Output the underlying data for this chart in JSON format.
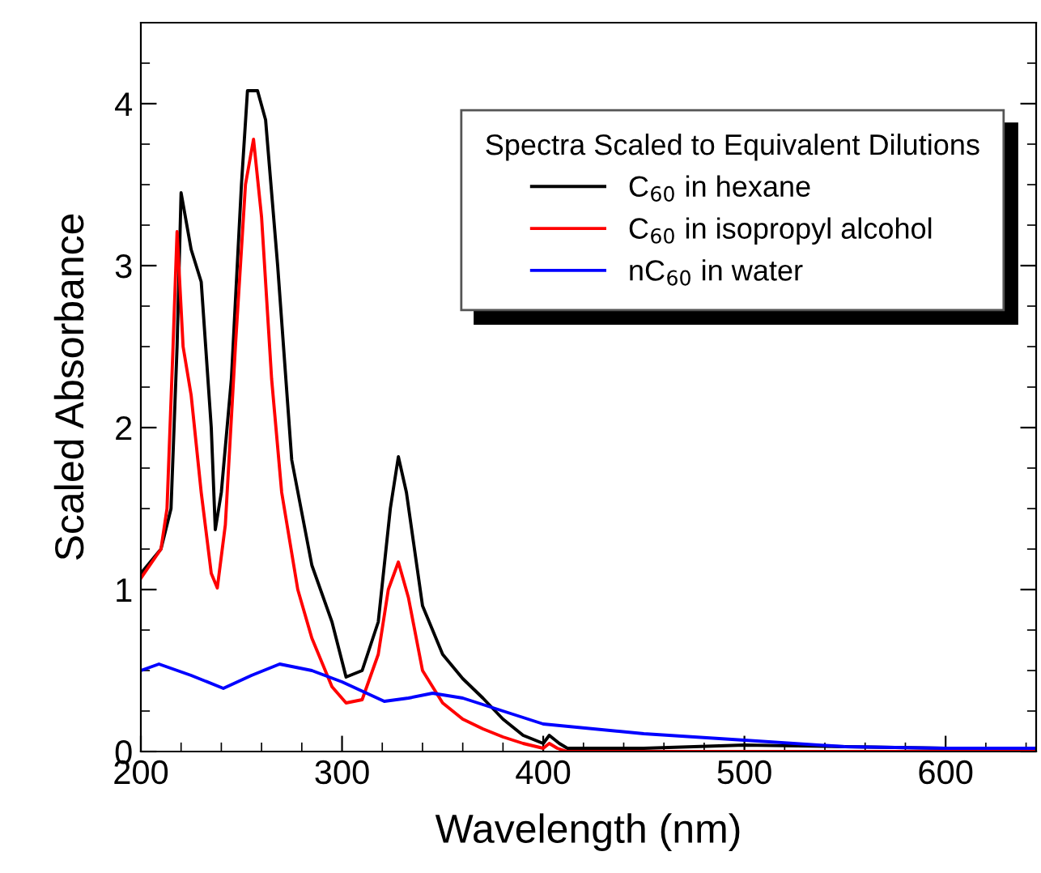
{
  "chart_data": {
    "type": "line",
    "xlabel": "Wavelength (nm)",
    "ylabel": "Scaled Absorbance",
    "legend_title": "Spectra Scaled to Equivalent Dilutions",
    "xlim": [
      200,
      645
    ],
    "ylim": [
      0,
      4.5
    ],
    "xticks": [
      200,
      300,
      400,
      500,
      600
    ],
    "yticks": [
      0,
      1,
      2,
      3,
      4
    ],
    "grid": false,
    "legend": "top right",
    "marker": "none",
    "line_style": "solid",
    "series": [
      {
        "name": "C$_{60}$ in hexane",
        "color": "#000000",
        "x": [
          200,
          210,
          215,
          218,
          220,
          225,
          230,
          235,
          237,
          240,
          245,
          250,
          253,
          258,
          262,
          268,
          275,
          285,
          295,
          302,
          310,
          318,
          324,
          328,
          332,
          340,
          350,
          360,
          370,
          380,
          390,
          400,
          403,
          408,
          412,
          450,
          500,
          550,
          600,
          645
        ],
        "values": [
          1.1,
          1.25,
          1.5,
          2.5,
          3.45,
          3.1,
          2.9,
          2.0,
          1.37,
          1.6,
          2.3,
          3.5,
          4.08,
          4.08,
          3.9,
          3.0,
          1.8,
          1.15,
          0.8,
          0.46,
          0.5,
          0.8,
          1.5,
          1.82,
          1.6,
          0.9,
          0.6,
          0.45,
          0.33,
          0.2,
          0.1,
          0.05,
          0.1,
          0.05,
          0.02,
          0.02,
          0.04,
          0.03,
          0.02,
          0.01
        ]
      },
      {
        "name": "C$_{60}$ in isopropyl alcohol",
        "color": "#ff0000",
        "x": [
          200,
          210,
          213,
          216,
          218,
          221,
          225,
          230,
          235,
          238,
          242,
          247,
          252,
          256,
          260,
          265,
          270,
          278,
          285,
          295,
          302,
          310,
          318,
          323,
          328,
          333,
          340,
          350,
          360,
          370,
          380,
          390,
          400,
          403,
          407,
          412,
          645
        ],
        "values": [
          1.07,
          1.25,
          1.5,
          2.5,
          3.21,
          2.5,
          2.2,
          1.6,
          1.1,
          1.01,
          1.4,
          2.5,
          3.5,
          3.78,
          3.3,
          2.3,
          1.6,
          1.0,
          0.7,
          0.4,
          0.3,
          0.32,
          0.6,
          1.0,
          1.17,
          0.95,
          0.5,
          0.3,
          0.2,
          0.14,
          0.09,
          0.05,
          0.02,
          0.05,
          0.02,
          0.0,
          0.0
        ]
      },
      {
        "name": "nC$_{60}$ in water",
        "color": "#0000ff",
        "x": [
          200,
          209,
          225,
          241,
          255,
          269,
          285,
          300,
          321,
          333,
          345,
          360,
          380,
          400,
          450,
          500,
          550,
          600,
          645
        ],
        "values": [
          0.5,
          0.54,
          0.47,
          0.39,
          0.47,
          0.54,
          0.5,
          0.43,
          0.31,
          0.33,
          0.36,
          0.33,
          0.25,
          0.17,
          0.11,
          0.07,
          0.03,
          0.02,
          0.02
        ]
      }
    ]
  }
}
